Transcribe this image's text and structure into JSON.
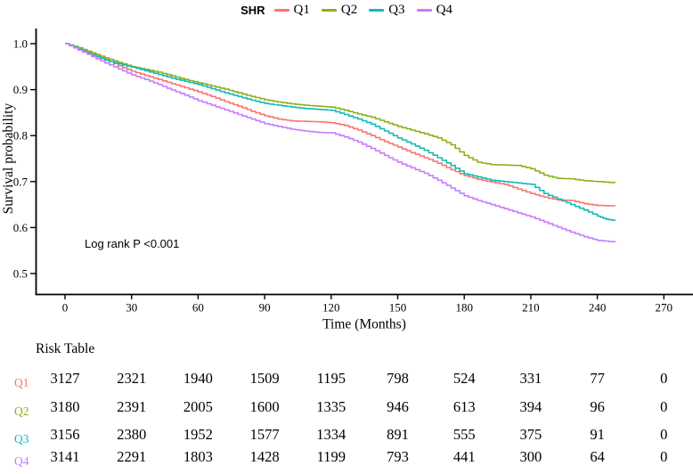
{
  "legend": {
    "title": "SHR",
    "items": [
      {
        "label": "Q1",
        "color": "#F8766D"
      },
      {
        "label": "Q2",
        "color": "#8FAF1B"
      },
      {
        "label": "Q3",
        "color": "#10BCB6"
      },
      {
        "label": "Q4",
        "color": "#C77CFF"
      }
    ]
  },
  "chart_data": {
    "type": "line",
    "subtype": "kaplan-meier-step",
    "title": "",
    "xlabel": "Time (Months)",
    "ylabel": "Survival probability",
    "annotation": "Log rank P <0.001",
    "legend_title": "SHR",
    "legend_position": "top",
    "grid": false,
    "xlim": [
      0,
      283
    ],
    "ylim": [
      0.46,
      1.02
    ],
    "xticks": [
      0,
      30,
      60,
      90,
      120,
      150,
      180,
      210,
      240,
      270
    ],
    "yticks": [
      0.5,
      0.6,
      0.7,
      0.8,
      0.9,
      1.0
    ],
    "series": [
      {
        "name": "Q1",
        "color": "#F8766D",
        "points": [
          [
            0,
            1.0
          ],
          [
            6,
            0.99
          ],
          [
            12,
            0.978
          ],
          [
            18,
            0.966
          ],
          [
            24,
            0.952
          ],
          [
            30,
            0.94
          ],
          [
            36,
            0.931
          ],
          [
            42,
            0.922
          ],
          [
            48,
            0.913
          ],
          [
            54,
            0.904
          ],
          [
            60,
            0.895
          ],
          [
            66,
            0.885
          ],
          [
            72,
            0.874
          ],
          [
            78,
            0.864
          ],
          [
            84,
            0.853
          ],
          [
            90,
            0.843
          ],
          [
            96,
            0.836
          ],
          [
            102,
            0.832
          ],
          [
            108,
            0.831
          ],
          [
            114,
            0.83
          ],
          [
            120,
            0.828
          ],
          [
            126,
            0.822
          ],
          [
            132,
            0.812
          ],
          [
            138,
            0.8
          ],
          [
            144,
            0.787
          ],
          [
            150,
            0.775
          ],
          [
            156,
            0.763
          ],
          [
            162,
            0.752
          ],
          [
            168,
            0.74
          ],
          [
            174,
            0.726
          ],
          [
            180,
            0.713
          ],
          [
            186,
            0.705
          ],
          [
            192,
            0.699
          ],
          [
            198,
            0.694
          ],
          [
            204,
            0.684
          ],
          [
            210,
            0.674
          ],
          [
            216,
            0.666
          ],
          [
            222,
            0.66
          ],
          [
            228,
            0.659
          ],
          [
            234,
            0.652
          ],
          [
            240,
            0.648
          ],
          [
            248,
            0.647
          ]
        ]
      },
      {
        "name": "Q2",
        "color": "#8FAF1B",
        "points": [
          [
            0,
            1.0
          ],
          [
            6,
            0.991
          ],
          [
            12,
            0.98
          ],
          [
            18,
            0.969
          ],
          [
            24,
            0.959
          ],
          [
            30,
            0.95
          ],
          [
            36,
            0.944
          ],
          [
            42,
            0.938
          ],
          [
            48,
            0.93
          ],
          [
            54,
            0.922
          ],
          [
            60,
            0.915
          ],
          [
            66,
            0.908
          ],
          [
            72,
            0.901
          ],
          [
            78,
            0.893
          ],
          [
            84,
            0.885
          ],
          [
            90,
            0.878
          ],
          [
            96,
            0.873
          ],
          [
            102,
            0.869
          ],
          [
            108,
            0.866
          ],
          [
            114,
            0.864
          ],
          [
            120,
            0.862
          ],
          [
            126,
            0.855
          ],
          [
            132,
            0.847
          ],
          [
            138,
            0.84
          ],
          [
            144,
            0.83
          ],
          [
            150,
            0.82
          ],
          [
            156,
            0.812
          ],
          [
            162,
            0.804
          ],
          [
            168,
            0.795
          ],
          [
            174,
            0.78
          ],
          [
            180,
            0.757
          ],
          [
            186,
            0.742
          ],
          [
            192,
            0.737
          ],
          [
            198,
            0.736
          ],
          [
            204,
            0.735
          ],
          [
            210,
            0.728
          ],
          [
            216,
            0.714
          ],
          [
            222,
            0.707
          ],
          [
            228,
            0.706
          ],
          [
            234,
            0.702
          ],
          [
            240,
            0.7
          ],
          [
            248,
            0.697
          ]
        ]
      },
      {
        "name": "Q3",
        "color": "#10BCB6",
        "points": [
          [
            0,
            1.0
          ],
          [
            6,
            0.988
          ],
          [
            12,
            0.975
          ],
          [
            18,
            0.964
          ],
          [
            24,
            0.956
          ],
          [
            30,
            0.949
          ],
          [
            36,
            0.941
          ],
          [
            42,
            0.933
          ],
          [
            48,
            0.925
          ],
          [
            54,
            0.918
          ],
          [
            60,
            0.911
          ],
          [
            66,
            0.902
          ],
          [
            72,
            0.893
          ],
          [
            78,
            0.885
          ],
          [
            84,
            0.877
          ],
          [
            90,
            0.87
          ],
          [
            96,
            0.866
          ],
          [
            102,
            0.862
          ],
          [
            108,
            0.859
          ],
          [
            114,
            0.857
          ],
          [
            120,
            0.855
          ],
          [
            126,
            0.846
          ],
          [
            132,
            0.836
          ],
          [
            138,
            0.825
          ],
          [
            144,
            0.81
          ],
          [
            150,
            0.795
          ],
          [
            156,
            0.782
          ],
          [
            162,
            0.768
          ],
          [
            168,
            0.752
          ],
          [
            174,
            0.735
          ],
          [
            180,
            0.717
          ],
          [
            186,
            0.71
          ],
          [
            192,
            0.703
          ],
          [
            198,
            0.7
          ],
          [
            204,
            0.697
          ],
          [
            210,
            0.694
          ],
          [
            216,
            0.674
          ],
          [
            222,
            0.662
          ],
          [
            228,
            0.65
          ],
          [
            234,
            0.638
          ],
          [
            240,
            0.625
          ],
          [
            244,
            0.618
          ],
          [
            248,
            0.615
          ]
        ]
      },
      {
        "name": "Q4",
        "color": "#C77CFF",
        "points": [
          [
            0,
            1.0
          ],
          [
            6,
            0.986
          ],
          [
            12,
            0.972
          ],
          [
            18,
            0.958
          ],
          [
            24,
            0.945
          ],
          [
            30,
            0.932
          ],
          [
            36,
            0.922
          ],
          [
            42,
            0.911
          ],
          [
            48,
            0.899
          ],
          [
            54,
            0.888
          ],
          [
            60,
            0.876
          ],
          [
            66,
            0.866
          ],
          [
            72,
            0.856
          ],
          [
            78,
            0.846
          ],
          [
            84,
            0.836
          ],
          [
            90,
            0.826
          ],
          [
            96,
            0.82
          ],
          [
            102,
            0.814
          ],
          [
            108,
            0.81
          ],
          [
            114,
            0.807
          ],
          [
            120,
            0.806
          ],
          [
            126,
            0.797
          ],
          [
            132,
            0.786
          ],
          [
            138,
            0.772
          ],
          [
            144,
            0.757
          ],
          [
            150,
            0.742
          ],
          [
            156,
            0.73
          ],
          [
            162,
            0.718
          ],
          [
            168,
            0.703
          ],
          [
            174,
            0.686
          ],
          [
            180,
            0.669
          ],
          [
            186,
            0.659
          ],
          [
            192,
            0.65
          ],
          [
            198,
            0.641
          ],
          [
            204,
            0.632
          ],
          [
            210,
            0.623
          ],
          [
            216,
            0.612
          ],
          [
            222,
            0.601
          ],
          [
            228,
            0.59
          ],
          [
            234,
            0.58
          ],
          [
            240,
            0.572
          ],
          [
            248,
            0.568
          ]
        ]
      }
    ]
  },
  "risk_table": {
    "title": "Risk Table",
    "time_points": [
      0,
      30,
      60,
      90,
      120,
      150,
      180,
      210,
      240,
      270
    ],
    "rows": [
      {
        "label": "Q1",
        "color": "#F8766D",
        "values": [
          3127,
          2321,
          1940,
          1509,
          1195,
          798,
          524,
          331,
          77,
          0
        ]
      },
      {
        "label": "Q2",
        "color": "#8FAF1B",
        "values": [
          3180,
          2391,
          2005,
          1600,
          1335,
          946,
          613,
          394,
          96,
          0
        ]
      },
      {
        "label": "Q3",
        "color": "#10BCB6",
        "values": [
          3156,
          2380,
          1952,
          1577,
          1334,
          891,
          555,
          375,
          91,
          0
        ]
      },
      {
        "label": "Q4",
        "color": "#C77CFF",
        "values": [
          3141,
          2291,
          1803,
          1428,
          1199,
          793,
          441,
          300,
          64,
          0
        ]
      }
    ]
  }
}
